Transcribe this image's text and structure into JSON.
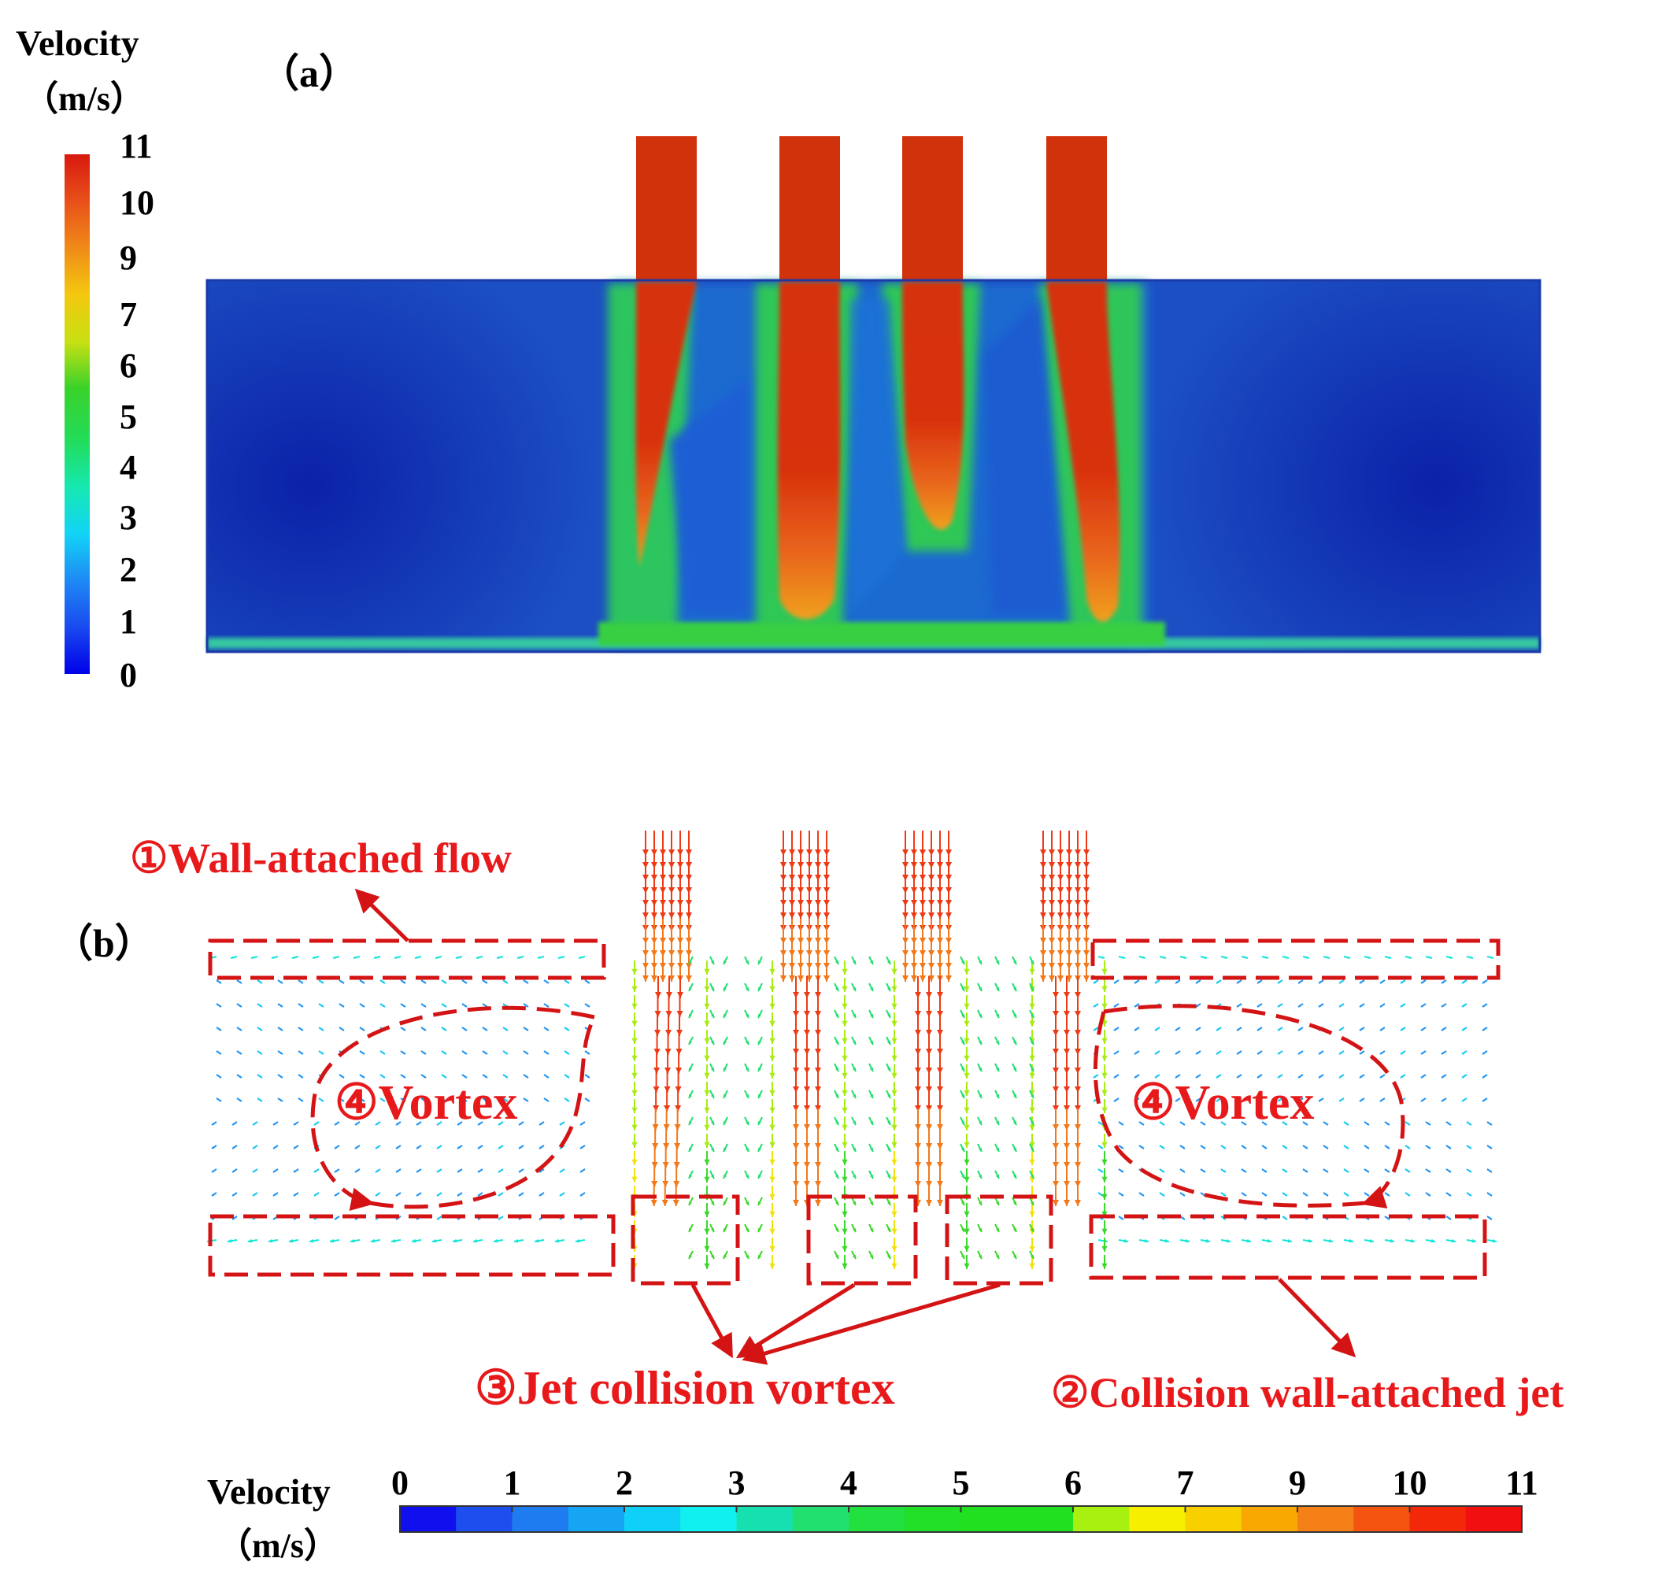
{
  "panel_a": {
    "label": "（a）",
    "colorbar": {
      "title": "Velocity",
      "unit": "（m/s）",
      "ticks": [
        "11",
        "10",
        "9",
        "7",
        "6",
        "5",
        "4",
        "3",
        "2",
        "1",
        "0"
      ]
    }
  },
  "panel_b": {
    "label": "（b）",
    "annotations": {
      "wall_attached_flow": "①Wall-attached flow",
      "collision_wall_jet": "②Collision wall-attached jet",
      "jet_collision_vortex": "③Jet collision vortex",
      "vortex": "④Vortex"
    },
    "colorbar": {
      "title": "Velocity",
      "unit": "（m/s）",
      "ticks": [
        "0",
        "1",
        "2",
        "3",
        "4",
        "5",
        "6",
        "7",
        "9",
        "10",
        "11"
      ]
    }
  },
  "colors": {
    "annotation_red": "#e8191b",
    "background_blue": "#1a3fb4",
    "jet_red": "#d42a0c",
    "legend_scale": [
      "#1010ee",
      "#1e4fee",
      "#1f7cf0",
      "#16a5f2",
      "#0fd0f6",
      "#10f0ee",
      "#17e0b0",
      "#21e070",
      "#22e040",
      "#22e028",
      "#20e020",
      "#20e020",
      "#a8f010",
      "#f6f000",
      "#f8d000",
      "#f8a800",
      "#f68018",
      "#f45410",
      "#f22808",
      "#f01010"
    ]
  }
}
